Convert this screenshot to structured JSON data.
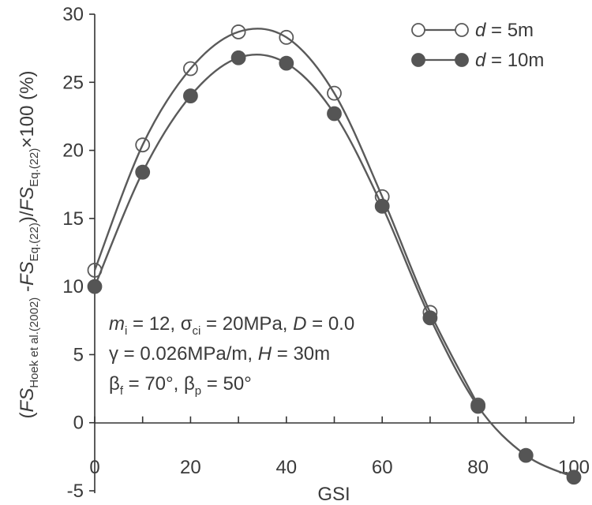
{
  "chart_data": {
    "type": "line",
    "xlabel": "GSI",
    "ylabel": {
      "open": "(",
      "fs1": "FS",
      "sub1": "Hoek et al.(2002)",
      "minus": " -",
      "fs2": "FS",
      "sub2": "Eq.(22)",
      "slash": ")/",
      "fs3": "FS",
      "sub3": "Eq.(22)",
      "tail": "×100 (%)"
    },
    "xlim": [
      0,
      100
    ],
    "ylim": [
      -5,
      30
    ],
    "x_ticks": [
      0,
      20,
      40,
      60,
      80,
      100
    ],
    "x_ticks_minor": [
      10,
      30,
      50,
      70,
      90
    ],
    "y_ticks": [
      -5,
      0,
      5,
      10,
      15,
      20,
      25,
      30
    ],
    "x_tick_labels": [
      "0",
      "20",
      "40",
      "60",
      "80",
      "100"
    ],
    "y_tick_labels": [
      "-5",
      "0",
      "5",
      "10",
      "15",
      "20",
      "25",
      "30"
    ],
    "grid": false,
    "legend_position": "top-right",
    "series": [
      {
        "name": "d = 5m",
        "name_var": "d",
        "name_rest": " = 5m",
        "marker": "open-circle",
        "x": [
          0,
          10,
          20,
          30,
          40,
          50,
          60,
          70,
          80
        ],
        "values": [
          11.2,
          20.4,
          26.0,
          28.7,
          28.3,
          24.2,
          16.6,
          8.1,
          1.3
        ]
      },
      {
        "name": "d = 10m",
        "name_var": "d",
        "name_rest": " = 10m",
        "marker": "filled-circle",
        "x": [
          0,
          10,
          20,
          30,
          40,
          50,
          60,
          70,
          80,
          90,
          100
        ],
        "values": [
          10.0,
          18.4,
          24.0,
          26.8,
          26.4,
          22.7,
          15.9,
          7.7,
          1.2,
          -2.4,
          -4.0
        ]
      }
    ],
    "annotations": {
      "line1": {
        "m": "m",
        "m_sub": "i",
        "m_val": " = 12,  ",
        "sigma": "σ",
        "sigma_sub": "ci",
        "sigma_val": " = 20MPa, ",
        "d": "D",
        "d_val": " = 0.0"
      },
      "line2": {
        "gamma": "γ = 0.026MPa/m, ",
        "h": "H",
        "h_val": " = 30m"
      },
      "line3": {
        "bf": "β",
        "bf_sub": "f",
        "bf_val": " = 70°,  ",
        "bp": "β",
        "bp_sub": "p",
        "bp_val": " = 50°"
      }
    },
    "colors": {
      "line": "#5a5a5a",
      "marker_fill": "#555555",
      "axis": "#333333",
      "text": "#3a3a3a"
    }
  }
}
